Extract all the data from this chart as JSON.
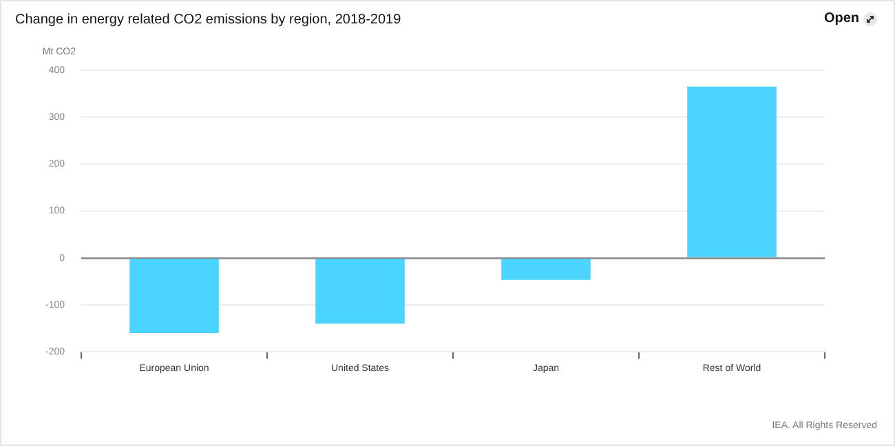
{
  "chart_data": {
    "type": "bar",
    "title": "Change in energy related CO2 emissions by region, 2018-2019",
    "ylabel": "Mt CO2",
    "categories": [
      "European Union",
      "United States",
      "Japan",
      "Rest of World"
    ],
    "values": [
      -160,
      -140,
      -47,
      365
    ],
    "color": "#4ad4ff",
    "ylim": [
      -200,
      400
    ],
    "yticks": [
      -200,
      -100,
      0,
      100,
      200,
      300,
      400
    ],
    "grid": "y",
    "legend": false,
    "annotations": [
      "Open",
      "IEA. All Rights Reserved"
    ]
  }
}
